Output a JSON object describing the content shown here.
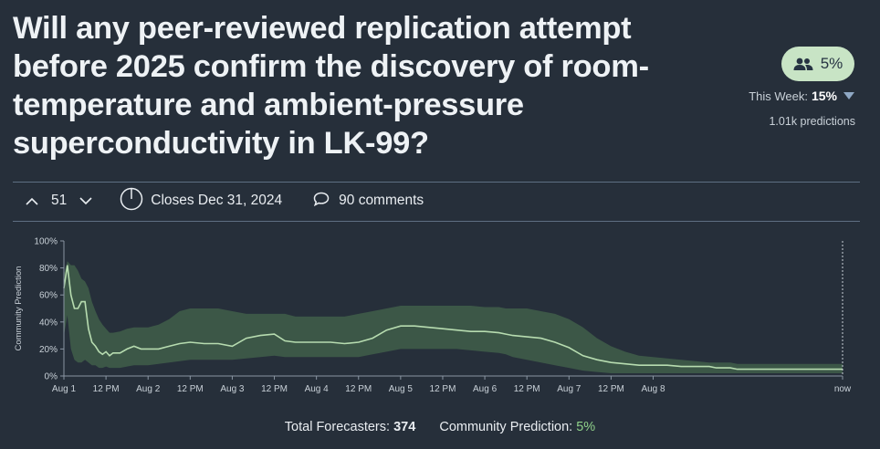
{
  "question": {
    "title": "Will any peer-reviewed replication attempt before 2025 confirm the discovery of room-temperature and ambient-pressure superconductivity in LK-99?"
  },
  "prediction": {
    "community_value": "5%",
    "this_week_label": "This Week:",
    "this_week_value": "15%",
    "predictions_count": "1.01k predictions"
  },
  "meta": {
    "vote_count": "51",
    "closes": "Closes Dec 31, 2024",
    "comments": "90 comments"
  },
  "footer": {
    "total_forecasters_label": "Total Forecasters:",
    "total_forecasters_value": "374",
    "community_prediction_label": "Community Prediction:",
    "community_prediction_value": "5%"
  },
  "colors": {
    "background": "#262f3a",
    "band": "#3d5a48",
    "line": "#b7dcb0",
    "accent_green": "#8fd18a",
    "pill": "#c8e4c5"
  },
  "chart_data": {
    "type": "area",
    "ylabel": "Community Prediction",
    "ylim": [
      0,
      100
    ],
    "yticks": [
      "0%",
      "20%",
      "40%",
      "60%",
      "80%",
      "100%"
    ],
    "xticks": [
      "Aug 1",
      "12 PM",
      "Aug 2",
      "12 PM",
      "Aug 3",
      "12 PM",
      "Aug 4",
      "12 PM",
      "Aug 5",
      "12 PM",
      "Aug 6",
      "12 PM",
      "Aug 7",
      "12 PM",
      "Aug 8",
      "now"
    ],
    "x_hours": [
      0,
      1,
      2,
      3,
      4,
      5,
      6,
      7,
      8,
      9,
      10,
      11,
      12,
      13,
      14,
      16,
      18,
      20,
      22,
      24,
      27,
      30,
      33,
      36,
      40,
      44,
      48,
      52,
      56,
      60,
      63,
      66,
      70,
      72,
      76,
      80,
      84,
      88,
      92,
      96,
      100,
      104,
      108,
      112,
      116,
      120,
      124,
      126,
      128,
      132,
      136,
      140,
      144,
      148,
      152,
      156,
      160,
      164,
      168,
      172,
      176,
      180,
      184,
      186,
      188,
      190,
      192,
      196,
      200,
      204,
      208,
      212,
      216,
      222
    ],
    "values": [
      65,
      82,
      60,
      50,
      50,
      55,
      55,
      35,
      25,
      22,
      18,
      16,
      18,
      15,
      17,
      17,
      20,
      22,
      20,
      20,
      20,
      22,
      24,
      25,
      24,
      24,
      22,
      28,
      30,
      31,
      26,
      25,
      25,
      25,
      25,
      24,
      25,
      28,
      34,
      37,
      37,
      36,
      35,
      34,
      33,
      33,
      32,
      31,
      30,
      29,
      28,
      25,
      21,
      15,
      12,
      10,
      9,
      8,
      8,
      8,
      7,
      7,
      7,
      6,
      6,
      6,
      5,
      5,
      5,
      5,
      5,
      5,
      5,
      5
    ],
    "upper": [
      75,
      85,
      82,
      82,
      78,
      72,
      70,
      65,
      55,
      48,
      42,
      38,
      35,
      32,
      32,
      33,
      35,
      36,
      36,
      36,
      38,
      42,
      48,
      50,
      50,
      50,
      48,
      46,
      46,
      46,
      46,
      44,
      44,
      44,
      44,
      44,
      46,
      48,
      50,
      52,
      52,
      52,
      52,
      52,
      52,
      51,
      51,
      50,
      50,
      50,
      48,
      46,
      42,
      36,
      28,
      22,
      18,
      15,
      14,
      13,
      12,
      11,
      10,
      10,
      10,
      10,
      9,
      9,
      9,
      9,
      9,
      9,
      9,
      9
    ],
    "lower": [
      30,
      45,
      20,
      12,
      10,
      10,
      12,
      10,
      8,
      8,
      6,
      6,
      7,
      6,
      6,
      6,
      7,
      8,
      8,
      8,
      9,
      10,
      11,
      12,
      12,
      12,
      12,
      13,
      14,
      15,
      14,
      14,
      14,
      14,
      14,
      14,
      14,
      16,
      18,
      20,
      20,
      20,
      20,
      20,
      19,
      18,
      17,
      16,
      14,
      12,
      10,
      8,
      6,
      4,
      3,
      2,
      2,
      2,
      2,
      2,
      2,
      2,
      2,
      2,
      2,
      2,
      2,
      2,
      2,
      2,
      2,
      2,
      2,
      2
    ],
    "grid": false
  }
}
